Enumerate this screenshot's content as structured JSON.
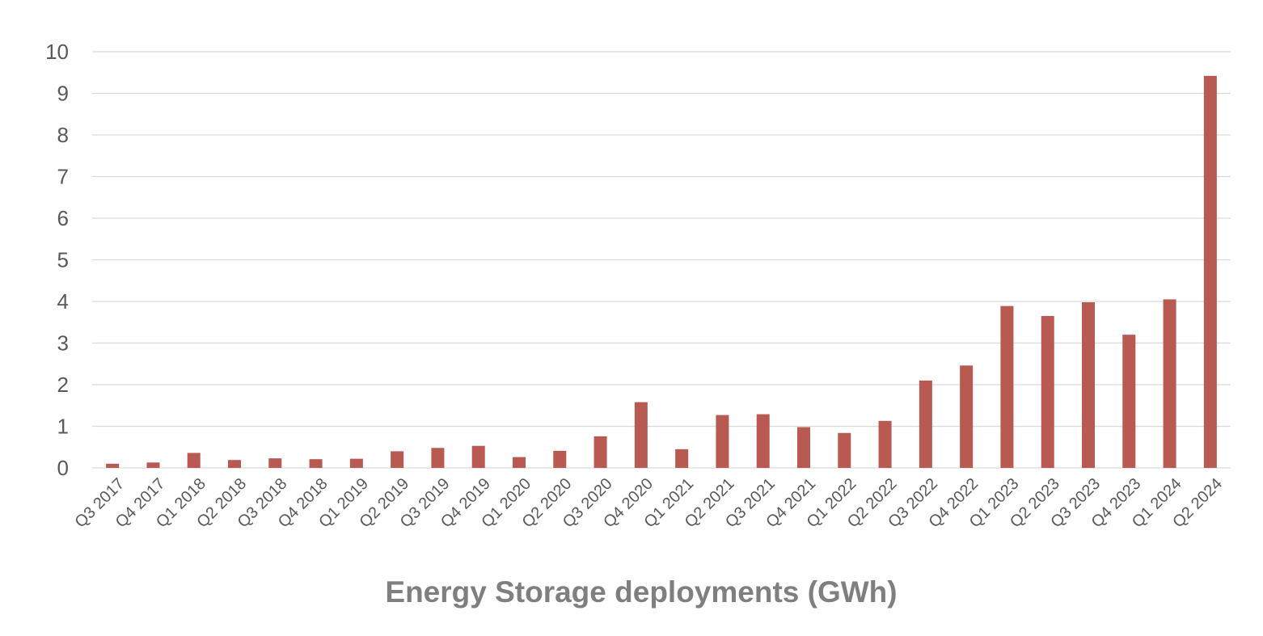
{
  "chart_data": {
    "type": "bar",
    "title": "",
    "xlabel": "Energy Storage deployments (GWh)",
    "ylabel": "",
    "ylim": [
      0,
      10
    ],
    "yticks": [
      0,
      1,
      2,
      3,
      4,
      5,
      6,
      7,
      8,
      9,
      10
    ],
    "grid": true,
    "legend": "none",
    "bar_color": "#b85a52",
    "categories": [
      "Q3 2017",
      "Q4 2017",
      "Q1 2018",
      "Q2 2018",
      "Q3 2018",
      "Q4 2018",
      "Q1 2019",
      "Q2 2019",
      "Q3 2019",
      "Q4 2019",
      "Q1 2020",
      "Q2 2020",
      "Q3 2020",
      "Q4 2020",
      "Q1 2021",
      "Q2 2021",
      "Q3 2021",
      "Q4 2021",
      "Q1 2022",
      "Q2 2022",
      "Q3 2022",
      "Q4 2022",
      "Q1 2023",
      "Q2 2023",
      "Q3 2023",
      "Q4 2023",
      "Q1 2024",
      "Q2 2024"
    ],
    "values": [
      0.1,
      0.13,
      0.36,
      0.19,
      0.23,
      0.21,
      0.22,
      0.4,
      0.48,
      0.53,
      0.26,
      0.41,
      0.76,
      1.58,
      0.45,
      1.27,
      1.29,
      0.98,
      0.84,
      1.13,
      2.1,
      2.46,
      3.89,
      3.65,
      3.98,
      3.2,
      4.05,
      9.42
    ]
  }
}
